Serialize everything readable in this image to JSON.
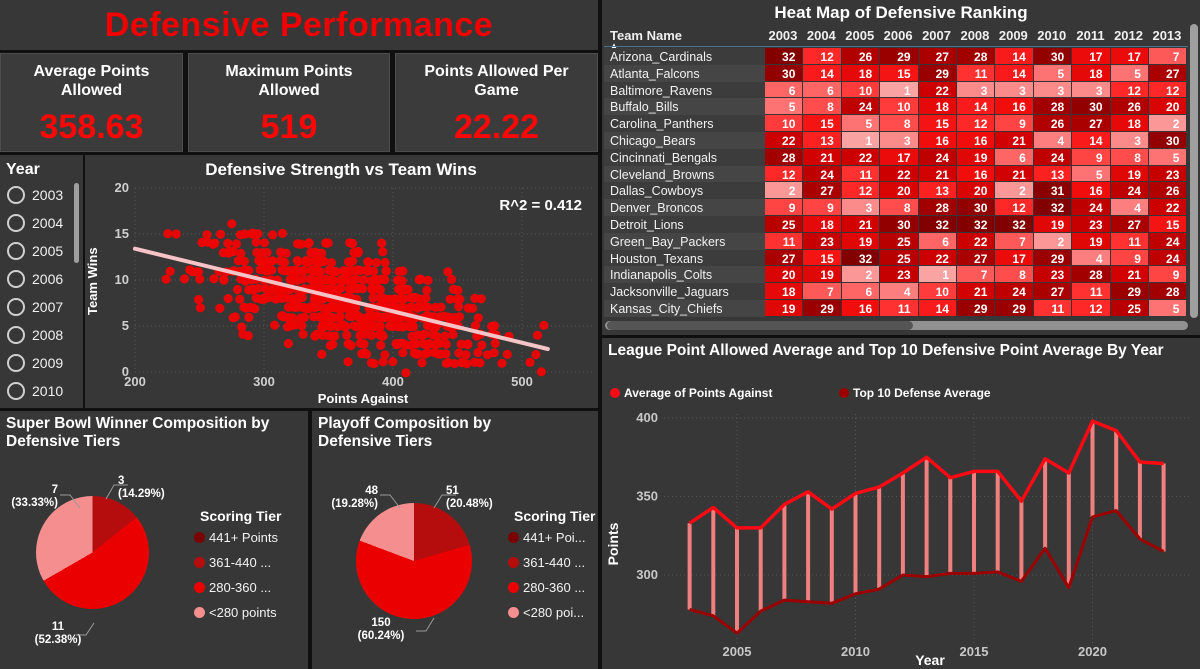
{
  "page": {
    "title": "Defensive Performance"
  },
  "kpis": [
    {
      "label": "Average Points Allowed",
      "value": "358.63"
    },
    {
      "label": "Maximum Points Allowed",
      "value": "519"
    },
    {
      "label": "Points Allowed Per Game",
      "value": "22.22"
    }
  ],
  "year_slicer": {
    "title": "Year",
    "options": [
      "2003",
      "2004",
      "2005",
      "2006",
      "2007",
      "2008",
      "2009",
      "2010"
    ]
  },
  "chart_data": [
    {
      "id": "scatter",
      "type": "scatter",
      "title": "Defensive Strength vs Team Wins",
      "xlabel": "Points Against",
      "ylabel": "Team Wins",
      "xlim": [
        200,
        530
      ],
      "ylim": [
        0,
        20
      ],
      "x_ticks": [
        200,
        300,
        400,
        500
      ],
      "y_ticks": [
        0,
        5,
        10,
        15,
        20
      ],
      "annotation": "R^2 = 0.412",
      "trendline": {
        "x1": 200,
        "y1": 13.4,
        "x2": 520,
        "y2": 2.5
      },
      "point_cloud": {
        "n": 640,
        "seed": 11,
        "noise_sd": 2.6,
        "outliers": [
          [
            275,
            16
          ],
          [
            410,
            0
          ],
          [
            515,
            0
          ],
          [
            517,
            5
          ],
          [
            512,
            4
          ]
        ],
        "note": "NFL team seasons: wins vs points against, negative correlation"
      },
      "point_color": "#ee0404",
      "trend_color": "#f6c3c6"
    },
    {
      "id": "heatmap",
      "type": "heatmap",
      "title": "Heat Map of Defensive Ranking",
      "row_header": "Team Name",
      "columns": [
        "2003",
        "2004",
        "2005",
        "2006",
        "2007",
        "2008",
        "2009",
        "2010",
        "2011",
        "2012",
        "2013"
      ],
      "rows": [
        {
          "team": "Arizona_Cardinals",
          "values": [
            32,
            12,
            26,
            29,
            27,
            28,
            14,
            30,
            17,
            17,
            7
          ]
        },
        {
          "team": "Atlanta_Falcons",
          "values": [
            30,
            14,
            18,
            15,
            29,
            11,
            14,
            5,
            18,
            5,
            27
          ]
        },
        {
          "team": "Baltimore_Ravens",
          "values": [
            6,
            6,
            10,
            1,
            22,
            3,
            3,
            3,
            3,
            12,
            12
          ]
        },
        {
          "team": "Buffalo_Bills",
          "values": [
            5,
            8,
            24,
            10,
            18,
            14,
            16,
            28,
            30,
            26,
            20
          ]
        },
        {
          "team": "Carolina_Panthers",
          "values": [
            10,
            15,
            5,
            8,
            15,
            12,
            9,
            26,
            27,
            18,
            2
          ]
        },
        {
          "team": "Chicago_Bears",
          "values": [
            22,
            13,
            1,
            3,
            16,
            16,
            21,
            4,
            14,
            3,
            30
          ]
        },
        {
          "team": "Cincinnati_Bengals",
          "values": [
            28,
            21,
            22,
            17,
            24,
            19,
            6,
            24,
            9,
            8,
            5
          ]
        },
        {
          "team": "Cleveland_Browns",
          "values": [
            12,
            24,
            11,
            22,
            21,
            16,
            21,
            13,
            5,
            19,
            23
          ]
        },
        {
          "team": "Dallas_Cowboys",
          "values": [
            2,
            27,
            12,
            20,
            13,
            20,
            2,
            31,
            16,
            24,
            26
          ]
        },
        {
          "team": "Denver_Broncos",
          "values": [
            9,
            9,
            3,
            8,
            28,
            30,
            12,
            32,
            24,
            4,
            22
          ]
        },
        {
          "team": "Detroit_Lions",
          "values": [
            25,
            18,
            21,
            30,
            32,
            32,
            32,
            19,
            23,
            27,
            15
          ]
        },
        {
          "team": "Green_Bay_Packers",
          "values": [
            11,
            23,
            19,
            25,
            6,
            22,
            7,
            2,
            19,
            11,
            24
          ]
        },
        {
          "team": "Houston_Texans",
          "values": [
            27,
            15,
            32,
            25,
            22,
            27,
            17,
            29,
            4,
            9,
            24
          ]
        },
        {
          "team": "Indianapolis_Colts",
          "values": [
            20,
            19,
            2,
            23,
            1,
            7,
            8,
            23,
            28,
            21,
            9
          ]
        },
        {
          "team": "Jacksonville_Jaguars",
          "values": [
            18,
            7,
            6,
            4,
            10,
            21,
            24,
            27,
            11,
            29,
            28
          ]
        },
        {
          "team": "Kansas_City_Chiefs",
          "values": [
            19,
            29,
            16,
            11,
            14,
            29,
            29,
            11,
            12,
            25,
            5
          ]
        }
      ],
      "color_scale": {
        "min_value": 1,
        "max_value": 32,
        "stops": [
          [
            1,
            "#faa3a3"
          ],
          [
            8,
            "#ff4d4d"
          ],
          [
            12,
            "#ff2828"
          ],
          [
            16,
            "#f20d0d"
          ],
          [
            22,
            "#cd0000"
          ],
          [
            27,
            "#aa0000"
          ],
          [
            32,
            "#820000"
          ]
        ]
      }
    },
    {
      "id": "line",
      "type": "line",
      "title": "League Point Allowed Average and Top 10 Defensive Point Average By Year",
      "xlabel": "Year",
      "ylabel": "Points",
      "x": [
        2003,
        2004,
        2005,
        2006,
        2007,
        2008,
        2009,
        2010,
        2011,
        2012,
        2013,
        2014,
        2015,
        2016,
        2017,
        2018,
        2019,
        2020,
        2021,
        2022,
        2023
      ],
      "series": [
        {
          "name": "Average of Points Against",
          "color": "#fb0a14",
          "values": [
            333,
            343,
            330,
            330,
            345,
            353,
            342,
            352,
            356,
            365,
            375,
            362,
            366,
            366,
            347,
            374,
            365,
            398,
            392,
            372,
            371
          ]
        },
        {
          "name": "Top 10 Defense Average",
          "color": "#9c0000",
          "values": [
            278,
            274,
            263,
            277,
            284,
            283,
            282,
            288,
            291,
            300,
            299,
            301,
            301,
            302,
            296,
            317,
            292,
            337,
            341,
            323,
            315
          ]
        }
      ],
      "connector_color": "#f08080",
      "y_ticks": [
        300,
        350,
        400
      ],
      "x_ticks": [
        2005,
        2010,
        2015,
        2020
      ],
      "ylim": [
        255,
        405
      ]
    },
    {
      "id": "pie-superbowl",
      "type": "pie",
      "title": "Super Bowl Winner Composition by Defensive Tiers",
      "legend_title": "Scoring Tier",
      "legend": [
        {
          "label": "441+ Points",
          "color": "#7a0000"
        },
        {
          "label": "361-440 ...",
          "color": "#b50d0d"
        },
        {
          "label": "280-360 ...",
          "color": "#ea0000"
        },
        {
          "label": "<280 points",
          "color": "#f58f8f"
        }
      ],
      "slices": [
        {
          "value": 3,
          "pct": "(14.29%)",
          "color": "#b50d0d"
        },
        {
          "value": 11,
          "pct": "(52.38%)",
          "color": "#ea0000"
        },
        {
          "value": 7,
          "pct": "(33.33%)",
          "color": "#f58f8f"
        }
      ]
    },
    {
      "id": "pie-playoff",
      "type": "pie",
      "title": "Playoff Composition by Defensive Tiers",
      "legend_title": "Scoring Tier",
      "legend": [
        {
          "label": "441+ Poi...",
          "color": "#7a0000"
        },
        {
          "label": "361-440 ...",
          "color": "#b50d0d"
        },
        {
          "label": "280-360 ...",
          "color": "#ea0000"
        },
        {
          "label": "<280 poi...",
          "color": "#f58f8f"
        }
      ],
      "slices": [
        {
          "value": 51,
          "pct": "(20.48%)",
          "color": "#b50d0d"
        },
        {
          "value": 150,
          "pct": "(60.24%)",
          "color": "#ea0000"
        },
        {
          "value": 48,
          "pct": "(19.28%)",
          "color": "#f58f8f"
        }
      ]
    }
  ]
}
